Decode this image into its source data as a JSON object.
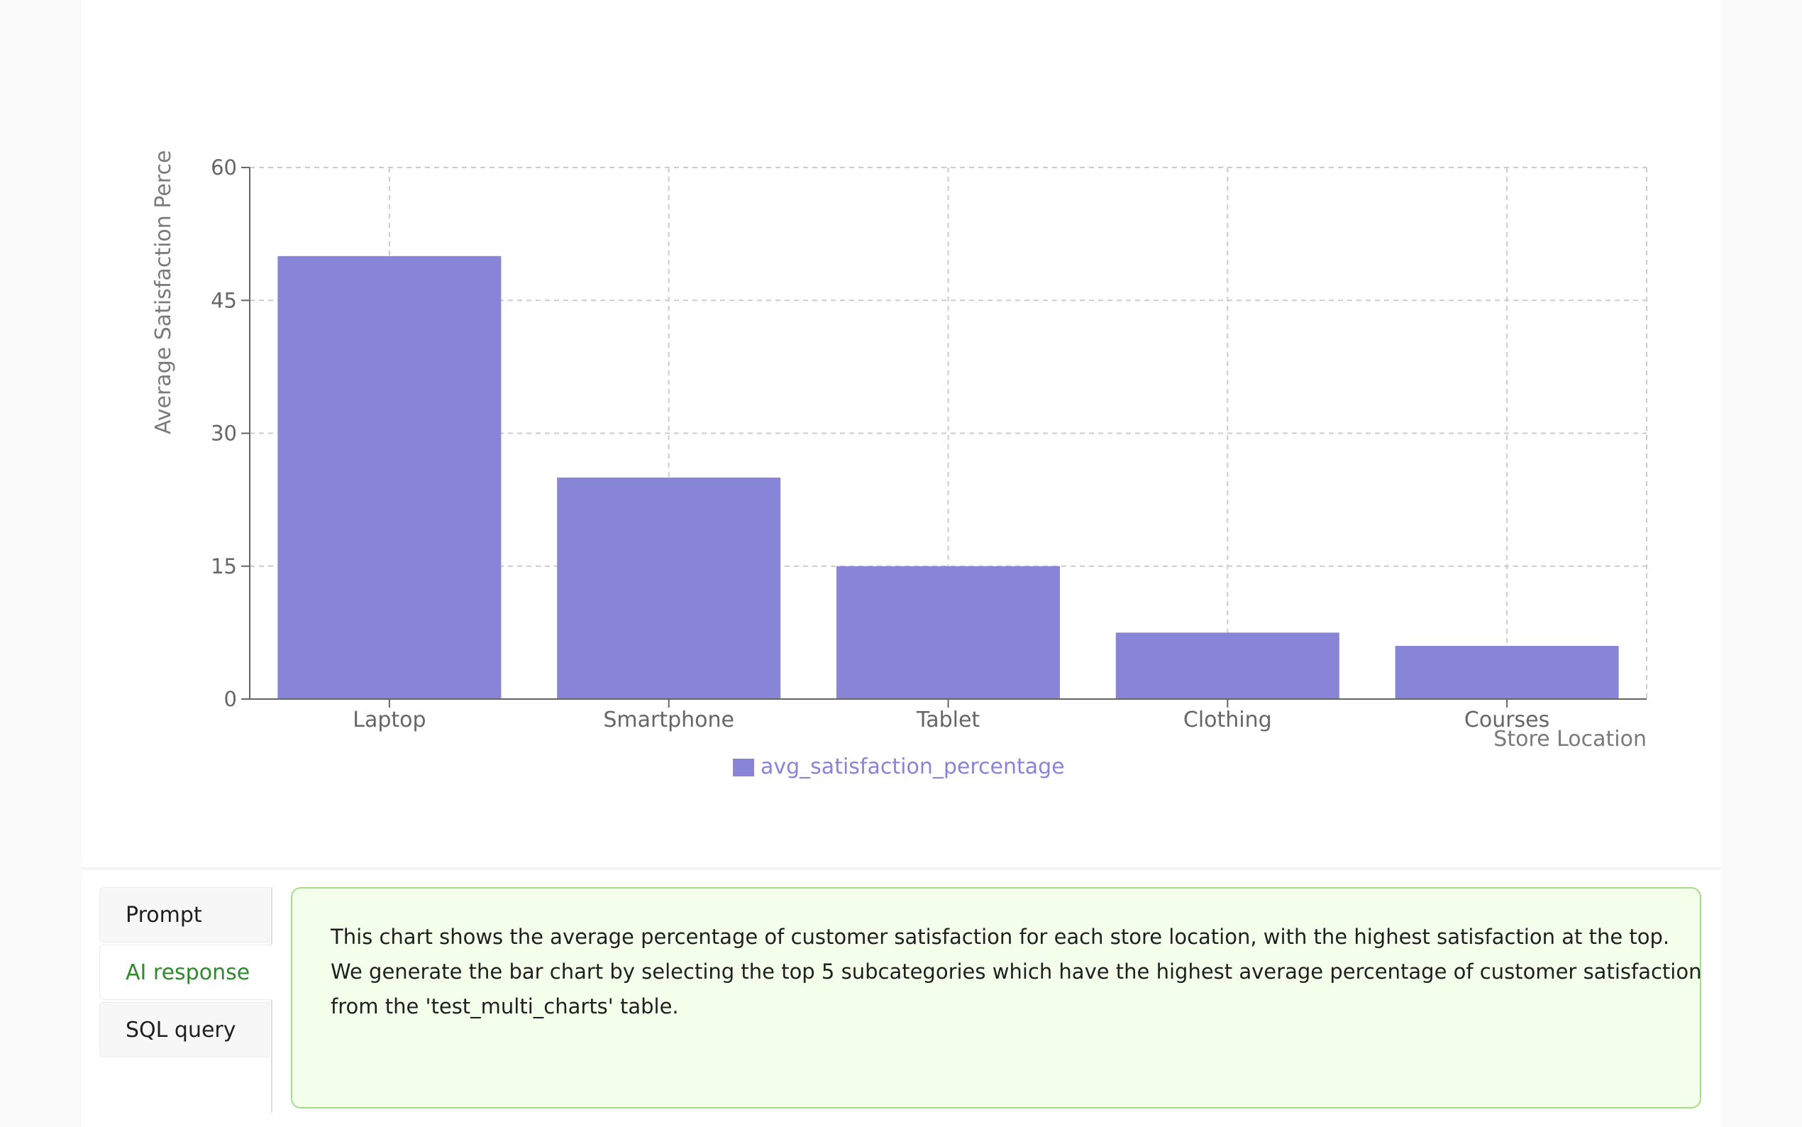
{
  "chart_data": {
    "type": "bar",
    "categories": [
      "Laptop",
      "Smartphone",
      "Tablet",
      "Clothing",
      "Courses"
    ],
    "series": [
      {
        "name": "avg_satisfaction_percentage",
        "values": [
          50,
          25,
          15,
          7.5,
          6
        ]
      }
    ],
    "xlabel": "Store Location",
    "ylabel": "Average Satisfaction Perce",
    "ylim": [
      0,
      60
    ],
    "yticks": [
      0,
      15,
      30,
      45,
      60
    ],
    "grid": true,
    "legend": "bottom-center",
    "colors": {
      "bar": "#8884d8",
      "grid": "#cccccc",
      "axis": "#666666",
      "label": "#666666"
    }
  },
  "tabs": [
    {
      "label": "Prompt",
      "active": false
    },
    {
      "label": "AI response",
      "active": true
    },
    {
      "label": "SQL query",
      "active": false
    }
  ],
  "response": {
    "lines": [
      "This chart shows the average percentage of customer satisfaction for each store location, with the highest satisfaction at the top.",
      "We generate the bar chart by selecting the top 5 subcategories which have the highest average percentage of customer satisfaction",
      "from the 'test_multi_charts' table."
    ]
  },
  "colors": {
    "active_tab": "#2f8a2f",
    "response_border": "#a8dc88",
    "response_bg": "#f4ffeb"
  }
}
